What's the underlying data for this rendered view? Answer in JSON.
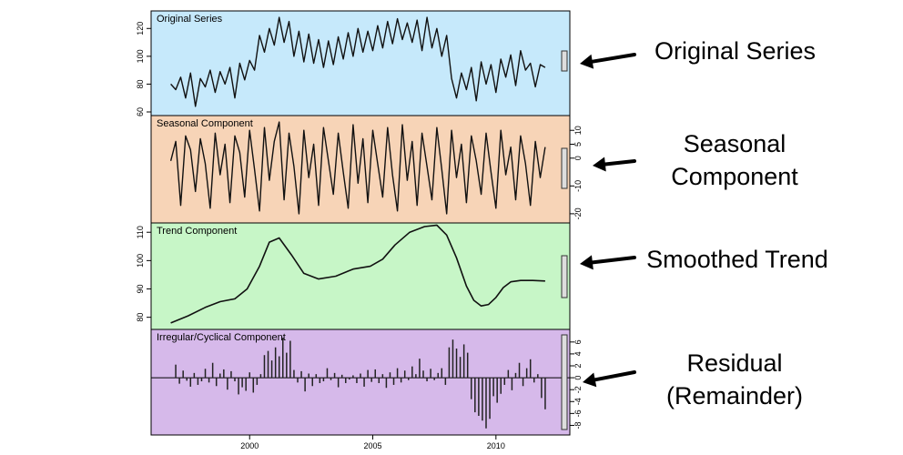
{
  "chart_data": {
    "type": "line",
    "x_axis": {
      "ticks": [
        2000,
        2005,
        2010
      ],
      "range": [
        1996,
        2013
      ]
    },
    "panels": [
      {
        "id": "original",
        "label": "Original Series",
        "style": "line",
        "background": "#c6e9fb",
        "y_ticks": [
          60,
          80,
          100,
          120
        ],
        "y_tick_labels": [
          "60",
          "80",
          "100",
          "120"
        ],
        "axis_side": "left",
        "ylim": [
          60,
          130
        ],
        "x": [
          1996.8,
          1997.0,
          1997.2,
          1997.4,
          1997.6,
          1997.8,
          1998.0,
          1998.2,
          1998.4,
          1998.6,
          1998.8,
          1999.0,
          1999.2,
          1999.4,
          1999.6,
          1999.8,
          2000.0,
          2000.2,
          2000.4,
          2000.6,
          2000.8,
          2001.0,
          2001.2,
          2001.4,
          2001.6,
          2001.8,
          2002.0,
          2002.2,
          2002.4,
          2002.6,
          2002.8,
          2003.0,
          2003.2,
          2003.4,
          2003.6,
          2003.8,
          2004.0,
          2004.2,
          2004.4,
          2004.6,
          2004.8,
          2005.0,
          2005.2,
          2005.4,
          2005.6,
          2005.8,
          2006.0,
          2006.2,
          2006.4,
          2006.6,
          2006.8,
          2007.0,
          2007.2,
          2007.4,
          2007.6,
          2007.8,
          2008.0,
          2008.2,
          2008.4,
          2008.6,
          2008.8,
          2009.0,
          2009.2,
          2009.4,
          2009.6,
          2009.8,
          2010.0,
          2010.2,
          2010.4,
          2010.6,
          2010.8,
          2011.0,
          2011.2,
          2011.4,
          2011.6,
          2011.8,
          2012.0
        ],
        "values": [
          80,
          76,
          85,
          70,
          88,
          64,
          84,
          78,
          90,
          74,
          89,
          80,
          92,
          70,
          95,
          83,
          97,
          90,
          115,
          103,
          120,
          108,
          128,
          110,
          125,
          100,
          118,
          96,
          116,
          95,
          112,
          92,
          111,
          94,
          114,
          98,
          117,
          100,
          120,
          103,
          118,
          104,
          122,
          106,
          125,
          109,
          127,
          112,
          124,
          110,
          126,
          104,
          128,
          106,
          120,
          100,
          115,
          84,
          70,
          88,
          76,
          92,
          68,
          96,
          80,
          94,
          74,
          98,
          85,
          101,
          79,
          104,
          90,
          95,
          78,
          94,
          92
        ],
        "scale_bar": true
      },
      {
        "id": "seasonal",
        "label": "Seasonal Component",
        "style": "line",
        "background": "#f7d4b7",
        "y_ticks": [
          -20,
          -10,
          0,
          5,
          10
        ],
        "y_tick_labels": [
          "-20",
          "-10",
          "0",
          "5",
          "10"
        ],
        "axis_side": "right",
        "ylim": [
          -22,
          14
        ],
        "x": [
          1996.8,
          1997.0,
          1997.2,
          1997.4,
          1997.6,
          1997.8,
          1998.0,
          1998.2,
          1998.4,
          1998.6,
          1998.8,
          1999.0,
          1999.2,
          1999.4,
          1999.6,
          1999.8,
          2000.0,
          2000.2,
          2000.4,
          2000.6,
          2000.8,
          2001.0,
          2001.2,
          2001.4,
          2001.6,
          2001.8,
          2002.0,
          2002.2,
          2002.4,
          2002.6,
          2002.8,
          2003.0,
          2003.2,
          2003.4,
          2003.6,
          2003.8,
          2004.0,
          2004.2,
          2004.4,
          2004.6,
          2004.8,
          2005.0,
          2005.2,
          2005.4,
          2005.6,
          2005.8,
          2006.0,
          2006.2,
          2006.4,
          2006.6,
          2006.8,
          2007.0,
          2007.2,
          2007.4,
          2007.6,
          2007.8,
          2008.0,
          2008.2,
          2008.4,
          2008.6,
          2008.8,
          2009.0,
          2009.2,
          2009.4,
          2009.6,
          2009.8,
          2010.0,
          2010.2,
          2010.4,
          2010.6,
          2010.8,
          2011.0,
          2011.2,
          2011.4,
          2011.6,
          2011.8,
          2012.0
        ],
        "values": [
          -1,
          6,
          -17,
          8,
          3,
          -12,
          7,
          -2,
          -18,
          9,
          -6,
          5,
          -16,
          8,
          2,
          -14,
          10,
          -4,
          -19,
          11,
          -8,
          6,
          13,
          -15,
          9,
          -3,
          -20,
          10,
          -7,
          5,
          -17,
          11,
          -1,
          -13,
          9,
          -5,
          -18,
          12,
          -9,
          7,
          -16,
          10,
          -2,
          -14,
          11,
          -6,
          -19,
          12,
          -8,
          6,
          -17,
          9,
          -3,
          -15,
          11,
          -4,
          -20,
          10,
          -7,
          5,
          -16,
          8,
          -1,
          -13,
          9,
          -5,
          -18,
          10,
          -6,
          4,
          -15,
          8,
          -2,
          -17,
          6,
          -7,
          4
        ],
        "scale_bar": true
      },
      {
        "id": "trend",
        "label": "Trend Component",
        "style": "line",
        "background": "#c7f6c7",
        "y_ticks": [
          80,
          90,
          100,
          110
        ],
        "y_tick_labels": [
          "80",
          "90",
          "100",
          "110"
        ],
        "axis_side": "left",
        "ylim": [
          77,
          112
        ],
        "x": [
          1996.8,
          1997.5,
          1998.2,
          1998.8,
          1999.4,
          1999.9,
          2000.4,
          2000.8,
          2001.2,
          2001.7,
          2002.2,
          2002.8,
          2003.5,
          2004.2,
          2004.9,
          2005.4,
          2005.9,
          2006.5,
          2007.1,
          2007.6,
          2008.0,
          2008.4,
          2008.8,
          2009.1,
          2009.4,
          2009.7,
          2010.0,
          2010.3,
          2010.6,
          2011.0,
          2011.5,
          2012.0
        ],
        "values": [
          78,
          80.5,
          83.5,
          85.5,
          86.5,
          90,
          98,
          106.5,
          108,
          102,
          95.5,
          93.5,
          94.5,
          97,
          98,
          100.5,
          105.5,
          110,
          112,
          112.5,
          109,
          101,
          91,
          86,
          84,
          84.5,
          87,
          90.5,
          92.5,
          93,
          93,
          92.8
        ],
        "scale_bar": true
      },
      {
        "id": "residual",
        "label": "Irregular/Cyclical Component",
        "style": "bar",
        "background": "#d6b9ea",
        "y_ticks": [
          -8,
          -6,
          -4,
          -2,
          0,
          2,
          4,
          6
        ],
        "y_tick_labels": [
          "-8",
          "-6",
          "-4",
          "-2",
          "0",
          "2",
          "4",
          "6"
        ],
        "axis_side": "right",
        "ylim": [
          -9,
          7.5
        ],
        "x": [
          1997.0,
          1997.15,
          1997.3,
          1997.45,
          1997.6,
          1997.75,
          1997.9,
          1998.05,
          1998.2,
          1998.35,
          1998.5,
          1998.65,
          1998.8,
          1998.95,
          1999.1,
          1999.25,
          1999.4,
          1999.55,
          1999.7,
          1999.85,
          2000.0,
          2000.15,
          2000.3,
          2000.45,
          2000.6,
          2000.75,
          2000.9,
          2001.05,
          2001.2,
          2001.35,
          2001.5,
          2001.65,
          2001.8,
          2001.95,
          2002.1,
          2002.25,
          2002.4,
          2002.55,
          2002.7,
          2002.85,
          2003.0,
          2003.15,
          2003.3,
          2003.45,
          2003.6,
          2003.75,
          2003.9,
          2004.05,
          2004.2,
          2004.35,
          2004.5,
          2004.65,
          2004.8,
          2004.95,
          2005.1,
          2005.25,
          2005.4,
          2005.55,
          2005.7,
          2005.85,
          2006.0,
          2006.15,
          2006.3,
          2006.45,
          2006.6,
          2006.75,
          2006.9,
          2007.05,
          2007.2,
          2007.35,
          2007.5,
          2007.65,
          2007.8,
          2007.95,
          2008.1,
          2008.25,
          2008.4,
          2008.55,
          2008.7,
          2008.85,
          2009.0,
          2009.15,
          2009.3,
          2009.45,
          2009.6,
          2009.75,
          2009.9,
          2010.05,
          2010.2,
          2010.35,
          2010.5,
          2010.65,
          2010.8,
          2010.95,
          2011.1,
          2011.25,
          2011.4,
          2011.55,
          2011.7,
          2011.85,
          2012.0
        ],
        "values": [
          2.2,
          -1,
          1.2,
          -0.5,
          -1.5,
          0.8,
          -1.2,
          -0.6,
          1.5,
          -0.8,
          2.5,
          -1.4,
          0.7,
          1.4,
          -2,
          1.1,
          -0.6,
          -2.8,
          -1.6,
          -2.2,
          0.9,
          -2.5,
          -1.2,
          0.6,
          3.8,
          4.5,
          2.9,
          5.1,
          3.6,
          6.7,
          4.2,
          6.2,
          1.3,
          -0.8,
          1.1,
          -2.3,
          0.7,
          -1.4,
          0.6,
          -0.9,
          -0.6,
          1.6,
          -0.4,
          0.8,
          -1.6,
          0.5,
          -0.9,
          -0.3,
          0.4,
          -0.9,
          0.7,
          -1.5,
          1.3,
          -0.7,
          1.4,
          -0.9,
          0.6,
          -1.7,
          0.9,
          -1.2,
          1.6,
          -0.8,
          1.2,
          -0.4,
          1.9,
          0.6,
          3.2,
          1.2,
          -0.6,
          1.5,
          -0.4,
          0.8,
          1.6,
          -1.2,
          5.1,
          6.4,
          4.9,
          3.5,
          5.6,
          4.2,
          -3.6,
          -5.8,
          -6.4,
          -7.2,
          -8.5,
          -6.9,
          -3.1,
          -4.2,
          -2.7,
          -1.2,
          1.3,
          -2.1,
          0.8,
          2.5,
          -1.4,
          1.6,
          3.1,
          -0.8,
          0.6,
          -3.4,
          -5.3
        ],
        "scale_bar": true
      }
    ]
  },
  "callouts": [
    {
      "id": "original",
      "lines": [
        "Original Series"
      ]
    },
    {
      "id": "seasonal",
      "lines": [
        "Seasonal",
        "Component"
      ]
    },
    {
      "id": "trend",
      "lines": [
        "Smoothed Trend"
      ]
    },
    {
      "id": "residual",
      "lines": [
        "Residual",
        "(Remainder)"
      ]
    }
  ]
}
